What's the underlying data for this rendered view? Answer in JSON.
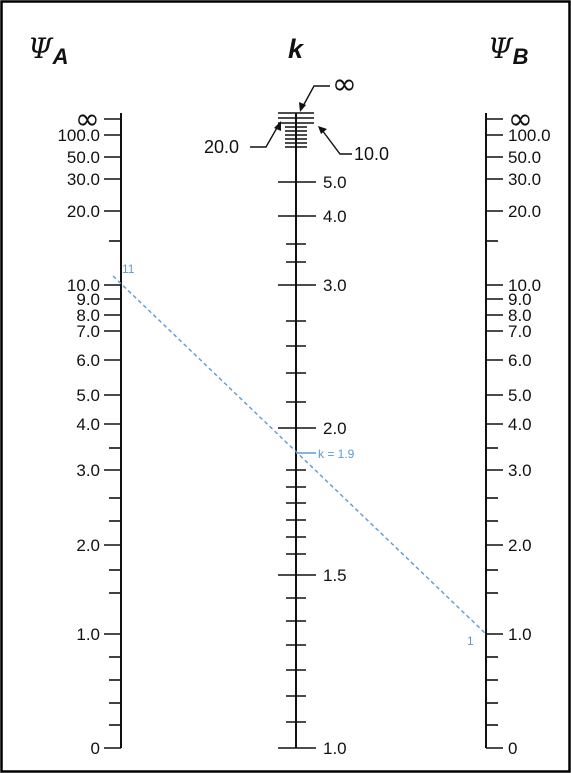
{
  "colors": {
    "annotation": "#5b9bd5",
    "ink": "#111111"
  },
  "axes": {
    "psi_a": {
      "title_main": "Ψ",
      "title_sub": "A",
      "labels": [
        {
          "text": "∞"
        },
        {
          "text": "100.0"
        },
        {
          "text": "50.0"
        },
        {
          "text": "30.0"
        },
        {
          "text": "20.0"
        },
        {
          "text": "10.0"
        },
        {
          "text": "9.0"
        },
        {
          "text": "8.0"
        },
        {
          "text": "7.0"
        },
        {
          "text": "6.0"
        },
        {
          "text": "5.0"
        },
        {
          "text": "4.0"
        },
        {
          "text": "3.0"
        },
        {
          "text": "2.0"
        },
        {
          "text": "1.0"
        },
        {
          "text": "0"
        }
      ]
    },
    "k": {
      "title": "k",
      "infinity_label": "∞",
      "callout_left": "20.0",
      "callout_right": "10.0",
      "labels": [
        {
          "text": "5.0"
        },
        {
          "text": "4.0"
        },
        {
          "text": "3.0"
        },
        {
          "text": "2.0"
        },
        {
          "text": "1.5"
        },
        {
          "text": "1.0"
        }
      ]
    },
    "psi_b": {
      "title_main": "Ψ",
      "title_sub": "B",
      "labels": [
        {
          "text": "∞"
        },
        {
          "text": "100.0"
        },
        {
          "text": "50.0"
        },
        {
          "text": "30.0"
        },
        {
          "text": "20.0"
        },
        {
          "text": "10.0"
        },
        {
          "text": "9.0"
        },
        {
          "text": "8.0"
        },
        {
          "text": "7.0"
        },
        {
          "text": "6.0"
        },
        {
          "text": "5.0"
        },
        {
          "text": "4.0"
        },
        {
          "text": "3.0"
        },
        {
          "text": "2.0"
        },
        {
          "text": "1.0"
        },
        {
          "text": "0"
        }
      ]
    }
  },
  "annotation": {
    "psi_a_value": "11",
    "k_value": "k = 1.9",
    "psi_b_value": "1"
  }
}
